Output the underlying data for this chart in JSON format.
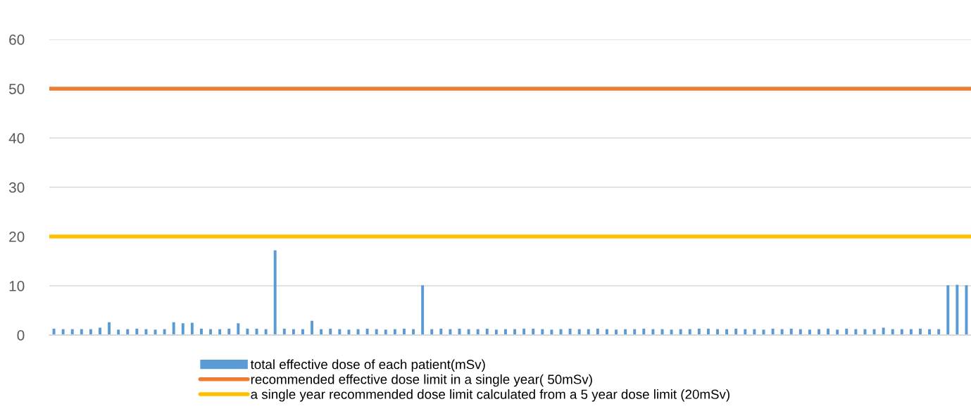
{
  "chart_data": {
    "type": "bar",
    "categories": [
      null,
      null,
      null,
      null,
      null,
      null,
      null,
      null,
      null,
      null,
      null,
      null,
      null,
      null,
      null,
      null,
      null,
      null,
      null,
      null,
      null,
      null,
      null,
      null,
      null,
      null,
      null,
      null,
      null,
      null,
      null,
      null,
      null,
      null,
      null,
      null,
      null,
      null,
      null,
      null,
      null,
      null,
      null,
      null,
      null,
      null,
      null,
      null,
      null,
      null,
      null,
      null,
      null,
      null,
      null,
      null,
      null,
      null,
      null,
      null,
      null,
      null,
      null,
      null,
      null,
      null,
      null,
      null,
      null,
      null,
      null,
      null,
      null,
      null,
      null,
      null,
      null,
      null,
      null,
      null,
      null,
      null,
      null,
      null,
      null,
      null,
      null,
      null,
      null,
      null,
      null,
      null,
      null,
      null,
      null,
      null,
      null,
      null,
      null,
      null
    ],
    "series": [
      {
        "name": "total effective dose of each patient(mSv)",
        "color": "#5b9bd5",
        "values": [
          1.3,
          1.2,
          1.2,
          1.2,
          1.2,
          1.5,
          2.6,
          1.1,
          1.2,
          1.3,
          1.2,
          1.1,
          1.2,
          2.6,
          2.4,
          2.5,
          1.3,
          1.2,
          1.2,
          1.3,
          2.4,
          1.3,
          1.3,
          1.2,
          17.2,
          1.3,
          1.2,
          1.2,
          2.9,
          1.2,
          1.3,
          1.2,
          1.1,
          1.2,
          1.3,
          1.2,
          1.1,
          1.2,
          1.3,
          1.2,
          10.1,
          1.2,
          1.3,
          1.2,
          1.3,
          1.2,
          1.2,
          1.3,
          1.1,
          1.2,
          1.2,
          1.3,
          1.3,
          1.2,
          1.1,
          1.2,
          1.3,
          1.2,
          1.2,
          1.3,
          1.2,
          1.1,
          1.2,
          1.2,
          1.3,
          1.2,
          1.2,
          1.1,
          1.2,
          1.2,
          1.3,
          1.3,
          1.2,
          1.2,
          1.3,
          1.2,
          1.2,
          1.1,
          1.3,
          1.2,
          1.3,
          1.2,
          1.1,
          1.2,
          1.3,
          1.1,
          1.3,
          1.2,
          1.2,
          1.2,
          1.5,
          1.2,
          1.2,
          1.2,
          1.3,
          1.2,
          1.2,
          10.1,
          10.2,
          10.1
        ]
      }
    ],
    "ref_lines": [
      {
        "axis": "y",
        "value": 50,
        "label": "recommended effective dose limit in a single year( 50mSv)",
        "color": "#ed7d31",
        "line_style": "solid"
      },
      {
        "axis": "y",
        "value": 20,
        "label": "a single year recommended dose limit calculated from a 5 year dose limit (20mSv)",
        "color": "#ffc000",
        "line_style": "solid"
      }
    ],
    "ylim": [
      0,
      60
    ],
    "yticks": [
      0,
      10,
      20,
      30,
      40,
      50,
      60
    ],
    "grid": "y",
    "legend": "bottom",
    "tick_labels": "y"
  }
}
